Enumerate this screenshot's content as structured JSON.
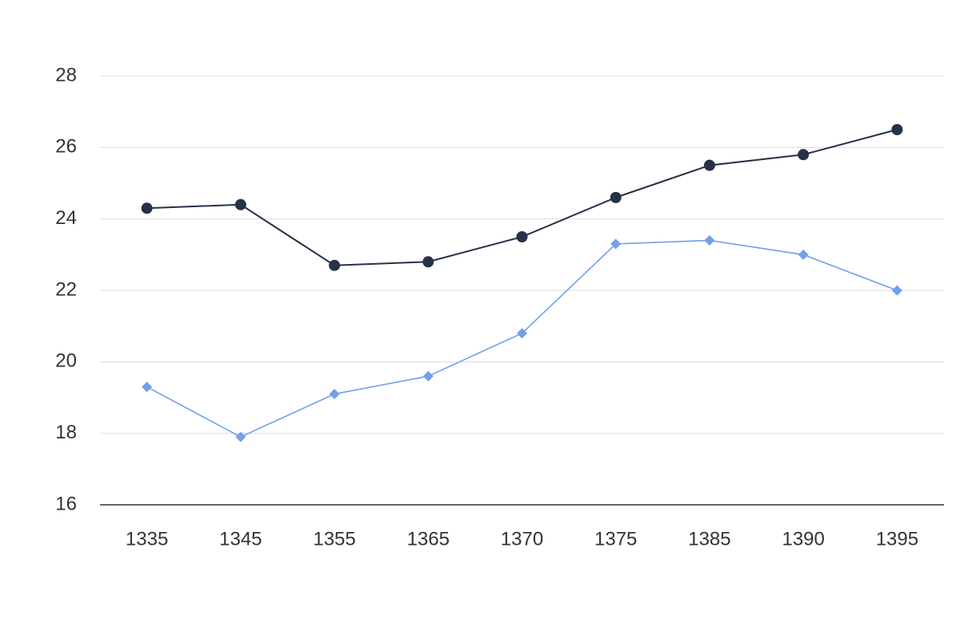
{
  "chart_data": {
    "type": "line",
    "categories": [
      "1335",
      "1345",
      "1355",
      "1365",
      "1370",
      "1375",
      "1385",
      "1390",
      "1395"
    ],
    "series": [
      {
        "color": "#253247",
        "marker": "circle",
        "values": [
          24.3,
          24.4,
          22.7,
          22.8,
          23.5,
          24.6,
          25.5,
          25.8,
          26.5
        ]
      },
      {
        "color": "#72a0ea",
        "marker": "diamond",
        "values": [
          19.3,
          17.9,
          19.1,
          19.6,
          20.8,
          23.3,
          23.4,
          23.0,
          22.0
        ]
      }
    ],
    "ylim": [
      16,
      28
    ],
    "yticks": [
      16,
      18,
      20,
      22,
      24,
      26,
      28
    ],
    "grid": true
  }
}
